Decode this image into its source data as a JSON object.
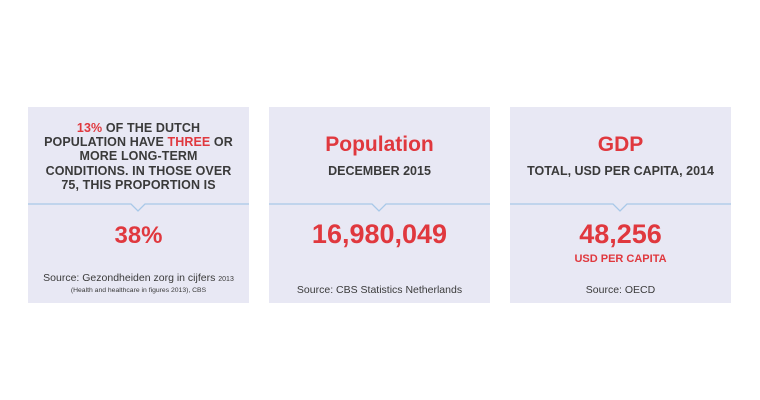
{
  "cards": [
    {
      "text_part1": "13%",
      "text_part2": " OF THE DUTCH POPULATION HAVE ",
      "text_part3": "THREE",
      "text_part4": " OR MORE LONG-TERM CONDITIONS. IN THOSE OVER 75, THIS PROPORTION IS",
      "value": "38%",
      "source_main": "Source: Gezondheiden zorg in cijfers",
      "source_year": "2013",
      "source_sub": "(Health and healthcare in figures 2013), CBS"
    },
    {
      "title": "Population",
      "subtitle": "DECEMBER 2015",
      "value": "16,980,049",
      "source": "Source: CBS Statistics Netherlands"
    },
    {
      "title": "GDP",
      "subtitle": "TOTAL, USD PER CAPITA, 2014",
      "value": "48,256",
      "unit": "USD PER CAPITA",
      "source": "Source: OECD"
    }
  ],
  "colors": {
    "accent": "#e0383e",
    "card_bg": "#e8e8f4",
    "divider": "#a8c8e8",
    "text": "#3a3a3a"
  }
}
